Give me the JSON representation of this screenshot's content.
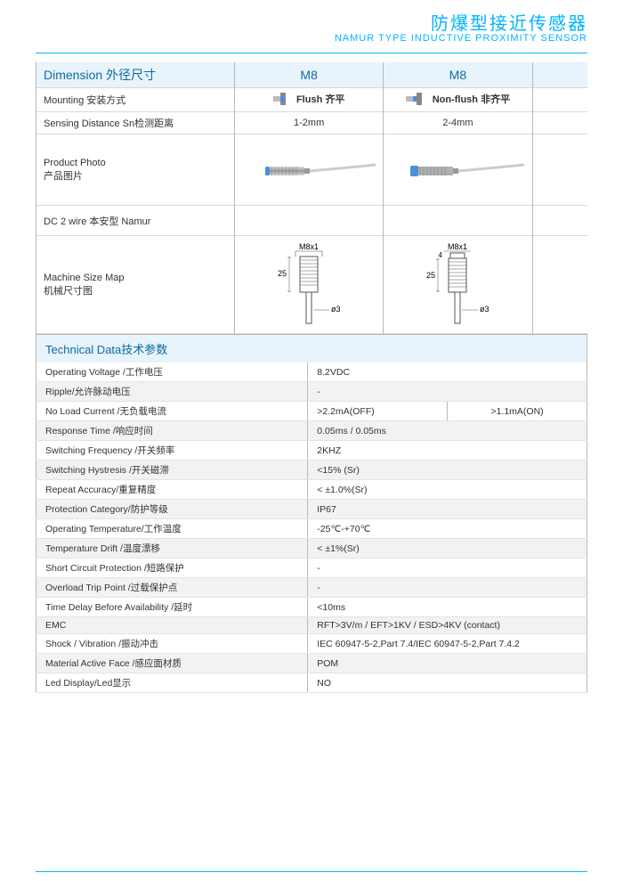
{
  "header": {
    "title_cn": "防爆型接近传感器",
    "title_en": "NAMUR TYPE  INDUCTIVE PROXIMITY SENSOR"
  },
  "colors": {
    "accent": "#00b4ff",
    "band_bg": "#e8f4fb",
    "band_text": "#0a6aa6",
    "rule": "#b8b8b8",
    "row_alt": "#f2f2f2",
    "sensor_body": "#b0b0b0",
    "sensor_tip_flush": "#4a90d9",
    "sensor_tip_nonflush": "#4a90d9",
    "cable": "#cccccc"
  },
  "columns": {
    "dimension_label": "Dimension  外径尺寸",
    "col_a": "M8",
    "col_b": "M8"
  },
  "rows": {
    "mounting": {
      "label": "Mounting  安装方式",
      "a": "Flush 齐平",
      "b": "Non-flush 非齐平"
    },
    "sensing": {
      "label": "Sensing Distance Sn检测距离",
      "a": "1-2mm",
      "b": "2-4mm"
    },
    "photo": {
      "label": "Product Photo\n产品图片"
    },
    "dc2wire": {
      "label": "DC 2 wire  本安型 Namur"
    },
    "sizemap": {
      "label": "Machine Size Map\n机械尺寸图",
      "thread": "M8x1",
      "len": "25",
      "dia": "ø3",
      "offset_b": "4"
    }
  },
  "tech_header": "Technical Data技术参数",
  "tech": [
    {
      "label": "Operating Voltage /工作电压",
      "v1": "8.2VDC",
      "v2": ""
    },
    {
      "label": "Ripple/允许脉动电压",
      "v1": "-",
      "v2": ""
    },
    {
      "label": "No Load Current /无负载电流",
      "v1": ">2.2mA(OFF)",
      "v2": ">1.1mA(ON)"
    },
    {
      "label": "Response Time /响应时间",
      "v1": "0.05ms / 0.05ms",
      "v2": ""
    },
    {
      "label": "Switching Frequency /开关频率",
      "v1": "2KHZ",
      "v2": ""
    },
    {
      "label": "Switching Hystresis /开关磁滞",
      "v1": "<15% (Sr)",
      "v2": ""
    },
    {
      "label": "Repeat Accuracy/重复精度",
      "v1": "< ±1.0%(Sr)",
      "v2": ""
    },
    {
      "label": "Protection Category/防护等级",
      "v1": "IP67",
      "v2": ""
    },
    {
      "label": "Operating Temperature/工作温度",
      "v1": "-25℃-+70℃",
      "v2": ""
    },
    {
      "label": "Temperature Drift /温度漂移",
      "v1": "< ±1%(Sr)",
      "v2": ""
    },
    {
      "label": "Short Circuit Protection /短路保护",
      "v1": "-",
      "v2": ""
    },
    {
      "label": "Overload Trip Point /过载保护点",
      "v1": "-",
      "v2": ""
    },
    {
      "label": "Time Delay Before Availability /延时",
      "v1": "<10ms",
      "v2": ""
    },
    {
      "label": "EMC",
      "v1": "RFT>3V/m / EFT>1KV / ESD>4KV (contact)",
      "v2": ""
    },
    {
      "label": "Shock / Vibration /振动冲击",
      "v1": "IEC 60947-5-2,Part 7.4/IEC 60947-5-2,Part 7.4.2",
      "v2": ""
    },
    {
      "label": "Material Active Face /感应面材质",
      "v1": "POM",
      "v2": ""
    },
    {
      "label": "Led Display/Led显示",
      "v1": "NO",
      "v2": ""
    }
  ]
}
